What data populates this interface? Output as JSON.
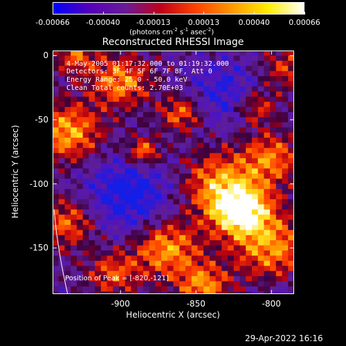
{
  "colorbar": {
    "ticks": [
      "-0.00066",
      "-0.00040",
      "-0.00013",
      "0.00013",
      "0.00040",
      "0.00066"
    ],
    "units_text": "(photons cm",
    "units_exp1": "-2",
    "units_mid1": " s",
    "units_exp2": "-1",
    "units_mid2": " asec",
    "units_exp3": "-2",
    "units_end": ")",
    "colors": [
      "#0000ff",
      "#5500bb",
      "#6a1b9a",
      "#c0001a",
      "#ff4400",
      "#ff9900",
      "#ffee00",
      "#ffffff"
    ]
  },
  "chart_data": {
    "type": "heatmap",
    "title": "Reconstructed RHESSI Image",
    "xlabel": "Heliocentric X (arcsec)",
    "ylabel": "Heliocentric Y (arcsec)",
    "xlim": [
      -945,
      -785
    ],
    "ylim": [
      -186,
      4
    ],
    "x_ticks": [
      "-900",
      "-850",
      "-800"
    ],
    "x_tick_values": [
      -900,
      -850,
      -800
    ],
    "y_ticks": [
      "0",
      "-50",
      "-100",
      "-150"
    ],
    "y_tick_values": [
      0,
      -50,
      -100,
      -150
    ],
    "peak": [
      -820,
      -121
    ],
    "annotations": [
      "4-May-2005 01:17:32.000 to 01:19:32.000",
      "Detectors: 3F 4F 5F 6F 7F 8F, Att 0",
      "Energy Range: 25.0 - 50.0 keV",
      "Clean     Total counts: 2.70E+03"
    ],
    "peak_text": "Position of Peak = [-820,-121]"
  },
  "footer": {
    "timestamp": "29-Apr-2022 16:16"
  }
}
